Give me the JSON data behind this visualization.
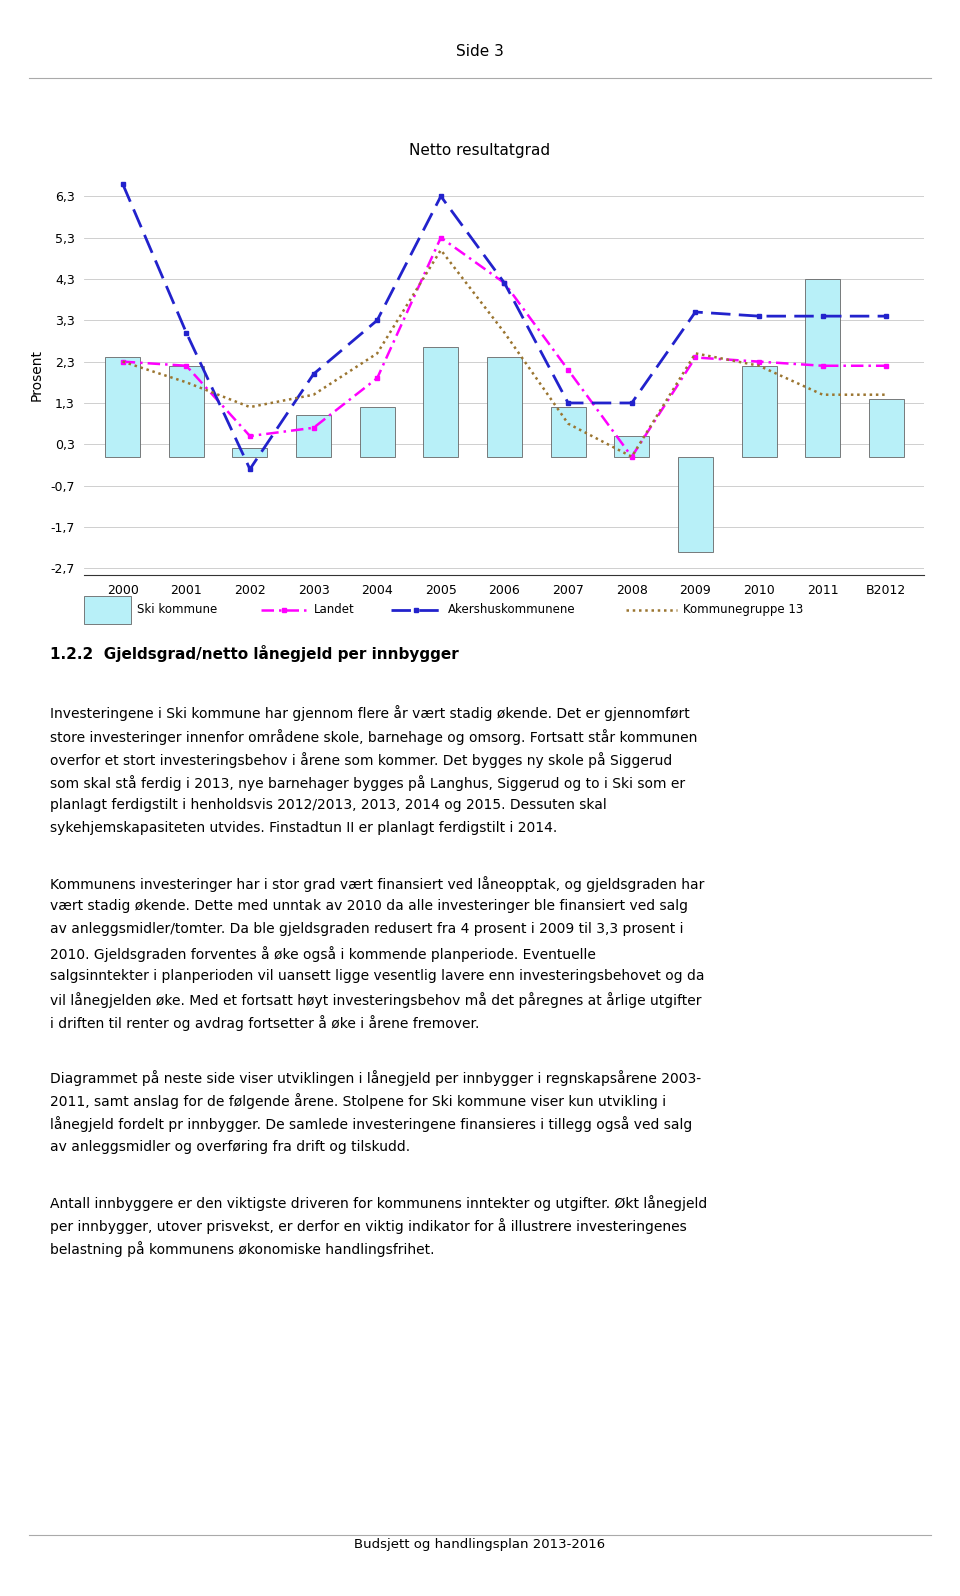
{
  "title": "Netto resultatgrad",
  "ylabel": "Prosent",
  "categories": [
    "2000",
    "2001",
    "2002",
    "2003",
    "2004",
    "2005",
    "2006",
    "2007",
    "2008",
    "2009",
    "2010",
    "2011",
    "B2012"
  ],
  "ski_kommune": [
    2.4,
    2.2,
    0.2,
    1.0,
    1.2,
    2.65,
    2.4,
    1.2,
    0.5,
    -2.3,
    2.2,
    4.3,
    1.4
  ],
  "landet": [
    2.3,
    2.2,
    0.5,
    0.7,
    1.9,
    5.3,
    4.2,
    2.1,
    0.0,
    2.4,
    2.3,
    2.2,
    2.2
  ],
  "akershus": [
    6.6,
    3.0,
    -0.3,
    2.0,
    3.3,
    6.3,
    4.2,
    1.3,
    1.3,
    3.5,
    3.4,
    3.4,
    3.4
  ],
  "kommunegruppe13": [
    2.3,
    1.8,
    1.2,
    1.5,
    2.5,
    5.0,
    3.0,
    0.8,
    0.0,
    2.5,
    2.2,
    1.5,
    1.5
  ],
  "bar_color": "#b8f0f8",
  "bar_edge_color": "#666666",
  "landet_color": "#ff00ff",
  "akershus_color": "#2222cc",
  "kommunegruppe13_color": "#9B7530",
  "yticks": [
    -2.7,
    -1.7,
    -0.7,
    0.3,
    1.3,
    2.3,
    3.3,
    4.3,
    5.3,
    6.3
  ],
  "ylim": [
    -2.85,
    6.8
  ],
  "background_color": "#ffffff",
  "header_text": "Side 3",
  "section_title": "1.2.2  Gjeldsgrad/netto lånegjeld per innbygger",
  "para1": "Investeringene i Ski kommune har gjennom flere år vært stadig økende. Det er gjennomført\nstore investeringer innenfor områdene skole, barnehage og omsorg. Fortsatt står kommunen\noverfor et stort investeringsbehov i årene som kommer. Det bygges ny skole på Siggerud\nsom skal stå ferdig i 2013, nye barnehager bygges på Langhus, Siggerud og to i Ski som er\nplanlagt ferdigstilt i henholdsvis 2012/2013, 2013, 2014 og 2015. Dessuten skal\nsykehjemskapasiteten utvides. Finstadtun II er planlagt ferdigstilt i 2014.",
  "para2": "Kommunens investeringer har i stor grad vært finansiert ved låneopptak, og gjeldsgraden har\nvært stadig økende. Dette med unntak av 2010 da alle investeringer ble finansiert ved salg\nav anleggsmidler/tomter. Da ble gjeldsgraden redusert fra 4 prosent i 2009 til 3,3 prosent i\n2010. Gjeldsgraden forventes å øke også i kommende planperiode. Eventuelle\nsalgsinntekter i planperioden vil uansett ligge vesentlig lavere enn investeringsbehovet og da\nvil lånegjelden øke. Med et fortsatt høyt investeringsbehov må det påregnes at årlige utgifter\ni driften til renter og avdrag fortsetter å øke i årene fremover.",
  "para3": "Diagrammet på neste side viser utviklingen i lånegjeld per innbygger i regnskapsårene 2003-\n2011, samt anslag for de følgende årene. Stolpene for Ski kommune viser kun utvikling i\nlånegjeld fordelt pr innbygger. De samlede investeringene finansieres i tillegg også ved salg\nav anleggsmidler og overføring fra drift og tilskudd.",
  "para4": "Antall innbyggere er den viktigste driveren for kommunens inntekter og utgifter. Økt lånegjeld\nper innbygger, utover prisvekst, er derfor en viktig indikator for å illustrere investeringenes\nbelastning på kommunens økonomiske handlingsfrihet.",
  "footer": "Budsjett og handlingsplan 2013-2016"
}
